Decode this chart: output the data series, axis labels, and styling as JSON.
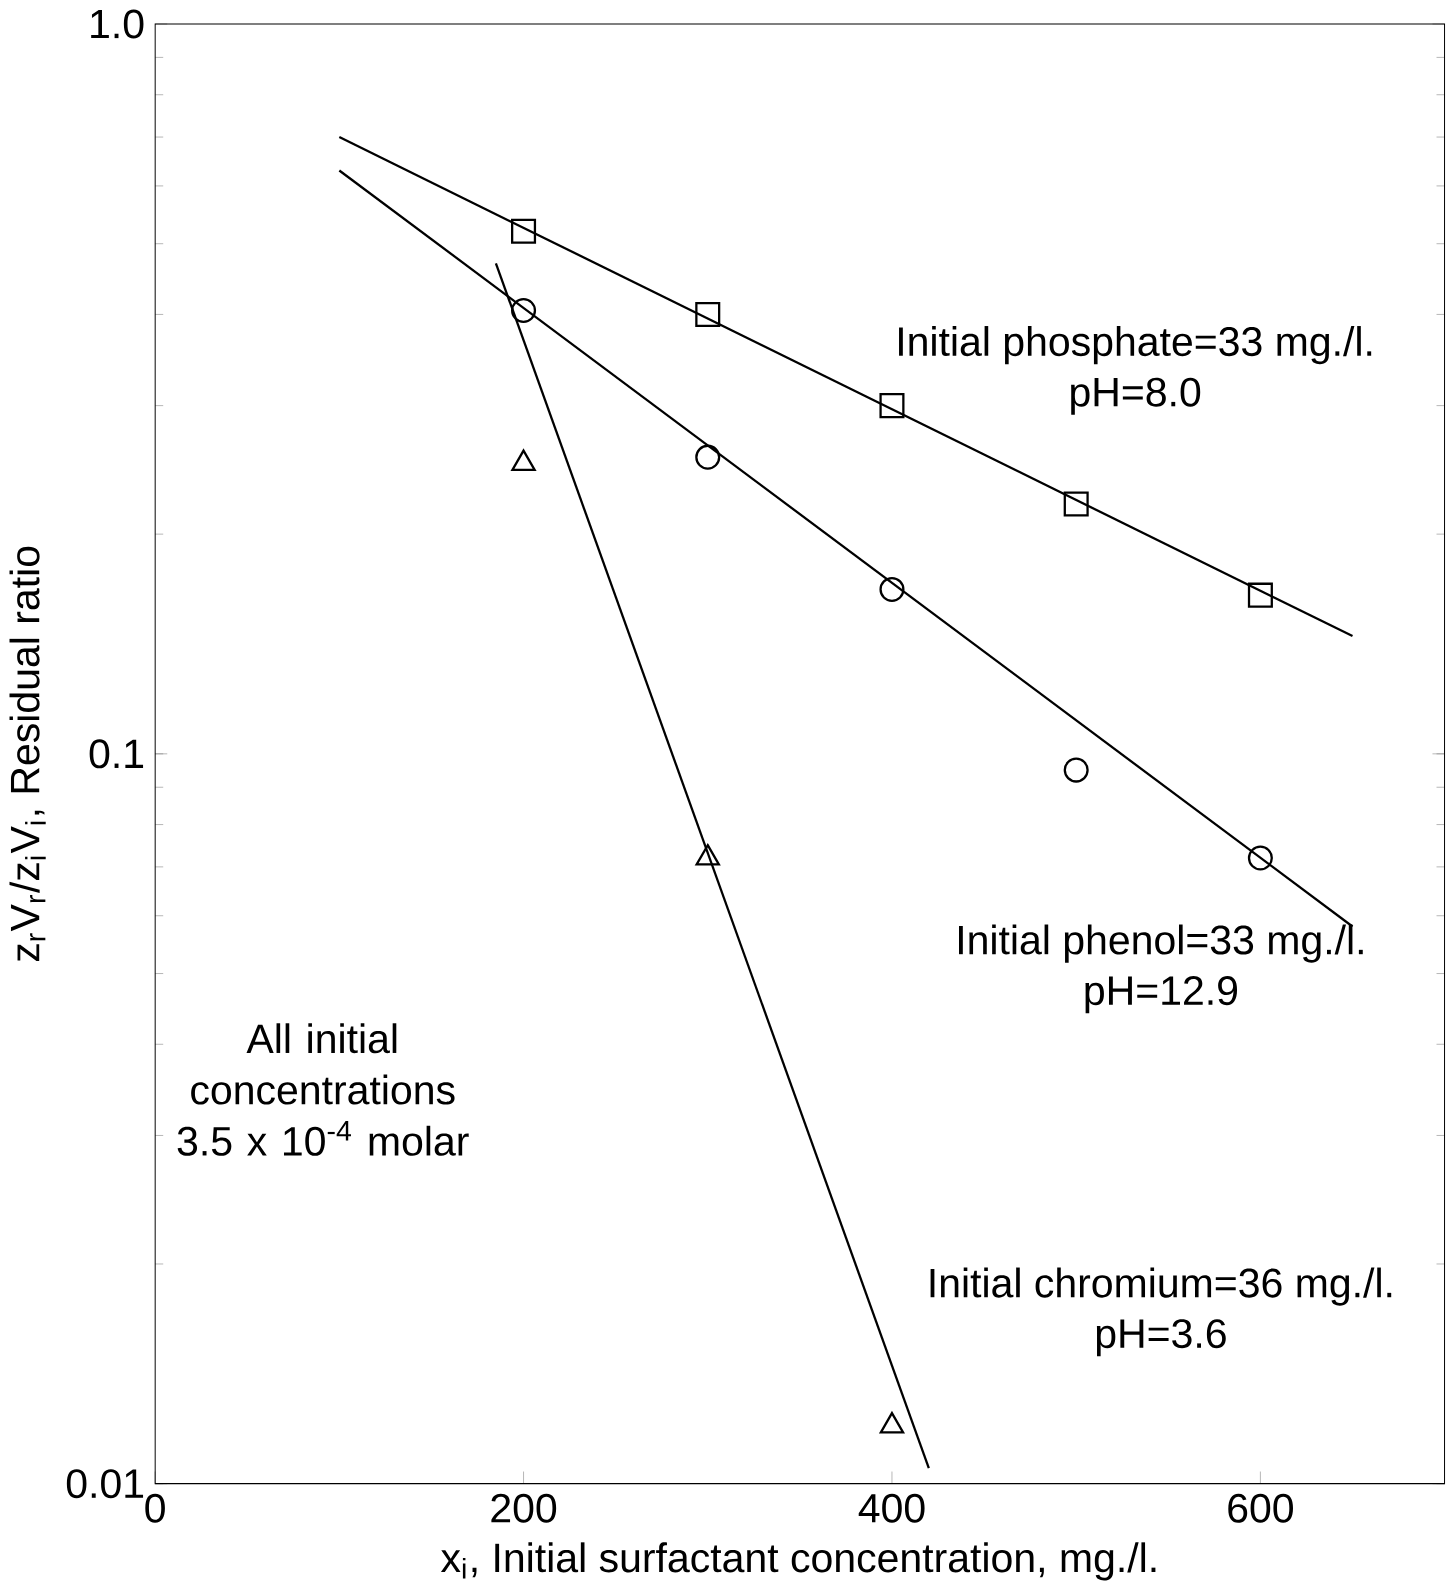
{
  "chart_data": {
    "type": "scatter",
    "xlabel": "x$_{i}$, Initial surfactant concentration, mg./l.",
    "ylabel": "z$_{r}$V$_{r}$/z$_{i}$V$_{i}$, Residual ratio",
    "xlim": [
      0,
      700
    ],
    "xticks": [
      0,
      200,
      400,
      600
    ],
    "ylim": [
      0.01,
      1
    ],
    "yticks": [
      {
        "value": 0.01,
        "label": "0.01"
      },
      {
        "value": 0.1,
        "label": "0.1"
      },
      {
        "value": 1,
        "label": "1.0"
      }
    ],
    "log": "y",
    "series": [
      {
        "marker": "square",
        "color": "#000000",
        "x": [
          200,
          300,
          400,
          500,
          600
        ],
        "values": [
          0.52,
          0.4,
          0.3,
          0.22,
          0.165
        ]
      },
      {
        "marker": "circle",
        "color": "#000000",
        "x": [
          200,
          300,
          400,
          500,
          600
        ],
        "values": [
          0.405,
          0.255,
          0.168,
          0.095,
          0.072
        ]
      },
      {
        "marker": "triangle",
        "color": "#000000",
        "x": [
          200,
          300,
          400
        ],
        "values": [
          0.25,
          0.072,
          0.012
        ]
      },
      {
        "type": "line",
        "marker": "none",
        "color": "#000000",
        "x": [
          100,
          650
        ],
        "values": [
          0.7,
          0.145
        ]
      },
      {
        "type": "line",
        "marker": "none",
        "color": "#000000",
        "x": [
          100,
          650
        ],
        "values": [
          0.63,
          0.058
        ]
      },
      {
        "type": "line",
        "marker": "none",
        "color": "#000000",
        "x": [
          185,
          420
        ],
        "values": [
          0.47,
          0.0105
        ]
      }
    ],
    "annotations": [
      "Initial phosphate=33 mg./l.",
      "pH=8.0",
      "Initial phenol=33 mg./l.",
      "pH=12.9",
      "Initial chromium=36 mg./l.",
      "pH=3.6",
      "All initial concentrations 3.5 x 10$^{-4}$ molar"
    ]
  }
}
